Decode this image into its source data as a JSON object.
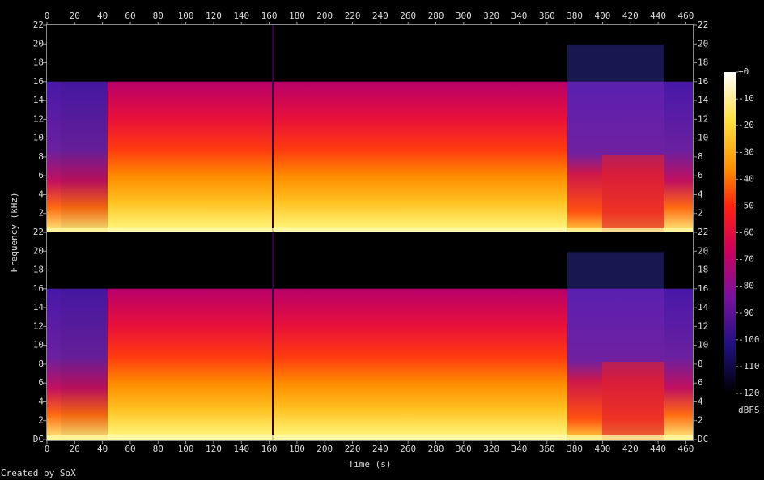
{
  "chart_data": {
    "type": "spectrogram",
    "x_label": "Time (s)",
    "y_label": "Frequency (kHz)",
    "xlim": [
      0,
      465
    ],
    "xticks": [
      0,
      20,
      40,
      60,
      80,
      100,
      120,
      140,
      160,
      180,
      200,
      220,
      240,
      260,
      280,
      300,
      320,
      340,
      360,
      380,
      400,
      420,
      440,
      460
    ],
    "panels": [
      {
        "ylim": [
          0,
          22
        ],
        "yticks": [
          2,
          4,
          6,
          8,
          10,
          12,
          14,
          16,
          18,
          20,
          22
        ]
      },
      {
        "ylim": [
          0,
          22
        ],
        "yticks": [
          {
            "value": 0,
            "label": "DC"
          },
          2,
          4,
          6,
          8,
          10,
          12,
          14,
          16,
          18,
          20,
          22
        ]
      }
    ],
    "colorbar": {
      "label": "dBFS",
      "lim": [
        -120,
        0
      ],
      "ticks": [
        {
          "value": 0,
          "label": "+0"
        },
        -10,
        -20,
        -30,
        -40,
        -50,
        -60,
        -70,
        -80,
        -90,
        -100,
        -110,
        -120
      ]
    }
  },
  "footer": "Created by SoX"
}
